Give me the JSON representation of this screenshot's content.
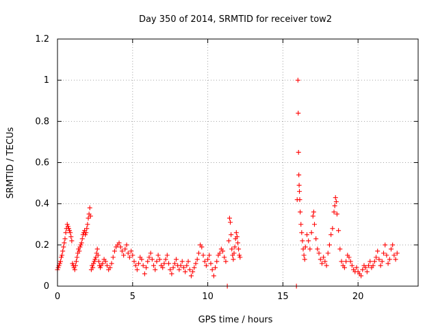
{
  "chart_data": {
    "type": "scatter",
    "title": "Day 350 of 2014, SRMTID for receiver tow2",
    "xlabel": "GPS time / hours",
    "ylabel": "SRMTID / TECUs",
    "xlim": [
      0,
      24
    ],
    "ylim": [
      0,
      1.2
    ],
    "x_ticks": [
      0,
      5,
      10,
      15,
      20
    ],
    "x_tick_labels": [
      "0",
      "5",
      "10",
      "15",
      "20"
    ],
    "y_ticks": [
      0,
      0.2,
      0.4,
      0.6,
      0.8,
      1.0,
      1.2
    ],
    "y_tick_labels": [
      "0",
      "0.2",
      "0.4",
      "0.6",
      "0.8",
      "1",
      "1.2"
    ],
    "grid": true,
    "marker": "plus",
    "color": "#ff0000",
    "series": [
      {
        "name": "SRMTID",
        "points": [
          [
            0.0,
            0.08
          ],
          [
            0.05,
            0.09
          ],
          [
            0.1,
            0.1
          ],
          [
            0.15,
            0.11
          ],
          [
            0.2,
            0.12
          ],
          [
            0.25,
            0.14
          ],
          [
            0.3,
            0.15
          ],
          [
            0.35,
            0.17
          ],
          [
            0.4,
            0.19
          ],
          [
            0.45,
            0.21
          ],
          [
            0.5,
            0.23
          ],
          [
            0.55,
            0.26
          ],
          [
            0.6,
            0.28
          ],
          [
            0.65,
            0.3
          ],
          [
            0.7,
            0.29
          ],
          [
            0.75,
            0.28
          ],
          [
            0.8,
            0.27
          ],
          [
            0.85,
            0.26
          ],
          [
            0.9,
            0.24
          ],
          [
            0.95,
            0.22
          ],
          [
            1.0,
            0.11
          ],
          [
            1.05,
            0.1
          ],
          [
            1.1,
            0.09
          ],
          [
            1.15,
            0.08
          ],
          [
            1.2,
            0.1
          ],
          [
            1.25,
            0.12
          ],
          [
            1.3,
            0.14
          ],
          [
            1.35,
            0.16
          ],
          [
            1.4,
            0.18
          ],
          [
            1.45,
            0.17
          ],
          [
            1.5,
            0.19
          ],
          [
            1.55,
            0.2
          ],
          [
            1.6,
            0.21
          ],
          [
            1.65,
            0.23
          ],
          [
            1.7,
            0.25
          ],
          [
            1.75,
            0.26
          ],
          [
            1.8,
            0.27
          ],
          [
            1.85,
            0.25
          ],
          [
            1.9,
            0.26
          ],
          [
            1.95,
            0.28
          ],
          [
            2.0,
            0.3
          ],
          [
            2.05,
            0.33
          ],
          [
            2.1,
            0.35
          ],
          [
            2.15,
            0.38
          ],
          [
            2.2,
            0.34
          ],
          [
            2.25,
            0.08
          ],
          [
            2.3,
            0.1
          ],
          [
            2.35,
            0.09
          ],
          [
            2.4,
            0.11
          ],
          [
            2.45,
            0.12
          ],
          [
            2.5,
            0.13
          ],
          [
            2.55,
            0.14
          ],
          [
            2.6,
            0.16
          ],
          [
            2.65,
            0.18
          ],
          [
            2.7,
            0.15
          ],
          [
            2.75,
            0.12
          ],
          [
            2.8,
            0.1
          ],
          [
            2.85,
            0.09
          ],
          [
            2.9,
            0.1
          ],
          [
            3.0,
            0.11
          ],
          [
            3.1,
            0.13
          ],
          [
            3.2,
            0.12
          ],
          [
            3.3,
            0.1
          ],
          [
            3.4,
            0.08
          ],
          [
            3.5,
            0.09
          ],
          [
            3.6,
            0.11
          ],
          [
            3.7,
            0.14
          ],
          [
            3.8,
            0.17
          ],
          [
            3.9,
            0.19
          ],
          [
            4.0,
            0.2
          ],
          [
            4.1,
            0.21
          ],
          [
            4.2,
            0.19
          ],
          [
            4.3,
            0.17
          ],
          [
            4.4,
            0.15
          ],
          [
            4.5,
            0.18
          ],
          [
            4.6,
            0.2
          ],
          [
            4.7,
            0.16
          ],
          [
            4.8,
            0.14
          ],
          [
            4.9,
            0.17
          ],
          [
            5.0,
            0.15
          ],
          [
            5.1,
            0.12
          ],
          [
            5.2,
            0.1
          ],
          [
            5.3,
            0.08
          ],
          [
            5.4,
            0.11
          ],
          [
            5.5,
            0.14
          ],
          [
            5.6,
            0.13
          ],
          [
            5.7,
            0.1
          ],
          [
            5.8,
            0.06
          ],
          [
            5.9,
            0.09
          ],
          [
            6.0,
            0.12
          ],
          [
            6.1,
            0.14
          ],
          [
            6.2,
            0.16
          ],
          [
            6.3,
            0.13
          ],
          [
            6.4,
            0.1
          ],
          [
            6.5,
            0.08
          ],
          [
            6.6,
            0.12
          ],
          [
            6.7,
            0.15
          ],
          [
            6.8,
            0.13
          ],
          [
            6.9,
            0.1
          ],
          [
            7.0,
            0.09
          ],
          [
            7.1,
            0.11
          ],
          [
            7.2,
            0.13
          ],
          [
            7.3,
            0.15
          ],
          [
            7.4,
            0.11
          ],
          [
            7.5,
            0.08
          ],
          [
            7.6,
            0.06
          ],
          [
            7.7,
            0.09
          ],
          [
            7.8,
            0.11
          ],
          [
            7.9,
            0.13
          ],
          [
            8.0,
            0.1
          ],
          [
            8.1,
            0.08
          ],
          [
            8.2,
            0.1
          ],
          [
            8.3,
            0.12
          ],
          [
            8.4,
            0.09
          ],
          [
            8.5,
            0.07
          ],
          [
            8.6,
            0.1
          ],
          [
            8.7,
            0.12
          ],
          [
            8.8,
            0.08
          ],
          [
            8.9,
            0.05
          ],
          [
            9.0,
            0.07
          ],
          [
            9.1,
            0.09
          ],
          [
            9.2,
            0.11
          ],
          [
            9.3,
            0.13
          ],
          [
            9.4,
            0.16
          ],
          [
            9.5,
            0.2
          ],
          [
            9.6,
            0.19
          ],
          [
            9.7,
            0.15
          ],
          [
            9.8,
            0.12
          ],
          [
            9.9,
            0.1
          ],
          [
            10.0,
            0.13
          ],
          [
            10.1,
            0.15
          ],
          [
            10.2,
            0.11
          ],
          [
            10.3,
            0.08
          ],
          [
            10.4,
            0.05
          ],
          [
            10.5,
            0.09
          ],
          [
            10.6,
            0.12
          ],
          [
            10.7,
            0.15
          ],
          [
            10.8,
            0.16
          ],
          [
            10.9,
            0.18
          ],
          [
            11.0,
            0.17
          ],
          [
            11.1,
            0.14
          ],
          [
            11.2,
            0.12
          ],
          [
            11.3,
            0.0
          ],
          [
            11.4,
            0.22
          ],
          [
            11.45,
            0.33
          ],
          [
            11.5,
            0.31
          ],
          [
            11.55,
            0.25
          ],
          [
            11.6,
            0.18
          ],
          [
            11.65,
            0.15
          ],
          [
            11.7,
            0.13
          ],
          [
            11.75,
            0.16
          ],
          [
            11.8,
            0.19
          ],
          [
            11.85,
            0.23
          ],
          [
            11.9,
            0.26
          ],
          [
            11.95,
            0.24
          ],
          [
            12.0,
            0.21
          ],
          [
            12.05,
            0.18
          ],
          [
            12.1,
            0.15
          ],
          [
            12.15,
            0.14
          ],
          [
            15.9,
            0.0
          ],
          [
            15.95,
            0.42
          ],
          [
            16.0,
            1.0
          ],
          [
            16.02,
            0.84
          ],
          [
            16.04,
            0.65
          ],
          [
            16.06,
            0.54
          ],
          [
            16.08,
            0.49
          ],
          [
            16.1,
            0.46
          ],
          [
            16.12,
            0.42
          ],
          [
            16.15,
            0.36
          ],
          [
            16.2,
            0.3
          ],
          [
            16.25,
            0.26
          ],
          [
            16.3,
            0.22
          ],
          [
            16.35,
            0.18
          ],
          [
            16.4,
            0.15
          ],
          [
            16.45,
            0.13
          ],
          [
            16.5,
            0.19
          ],
          [
            16.6,
            0.25
          ],
          [
            16.7,
            0.22
          ],
          [
            16.8,
            0.18
          ],
          [
            16.9,
            0.26
          ],
          [
            17.0,
            0.34
          ],
          [
            17.05,
            0.36
          ],
          [
            17.1,
            0.3
          ],
          [
            17.2,
            0.23
          ],
          [
            17.3,
            0.18
          ],
          [
            17.4,
            0.16
          ],
          [
            17.5,
            0.13
          ],
          [
            17.6,
            0.11
          ],
          [
            17.7,
            0.14
          ],
          [
            17.8,
            0.12
          ],
          [
            17.9,
            0.1
          ],
          [
            18.0,
            0.16
          ],
          [
            18.1,
            0.2
          ],
          [
            18.2,
            0.25
          ],
          [
            18.3,
            0.28
          ],
          [
            18.4,
            0.36
          ],
          [
            18.45,
            0.39
          ],
          [
            18.5,
            0.43
          ],
          [
            18.55,
            0.41
          ],
          [
            18.6,
            0.35
          ],
          [
            18.7,
            0.27
          ],
          [
            18.8,
            0.18
          ],
          [
            18.9,
            0.12
          ],
          [
            19.0,
            0.1
          ],
          [
            19.1,
            0.09
          ],
          [
            19.2,
            0.12
          ],
          [
            19.3,
            0.15
          ],
          [
            19.4,
            0.14
          ],
          [
            19.5,
            0.12
          ],
          [
            19.6,
            0.1
          ],
          [
            19.7,
            0.08
          ],
          [
            19.8,
            0.07
          ],
          [
            19.9,
            0.09
          ],
          [
            20.0,
            0.07
          ],
          [
            20.1,
            0.06
          ],
          [
            20.2,
            0.05
          ],
          [
            20.3,
            0.08
          ],
          [
            20.4,
            0.1
          ],
          [
            20.5,
            0.09
          ],
          [
            20.6,
            0.07
          ],
          [
            20.7,
            0.1
          ],
          [
            20.8,
            0.12
          ],
          [
            20.9,
            0.09
          ],
          [
            21.0,
            0.1
          ],
          [
            21.1,
            0.12
          ],
          [
            21.2,
            0.14
          ],
          [
            21.3,
            0.17
          ],
          [
            21.4,
            0.13
          ],
          [
            21.5,
            0.1
          ],
          [
            21.6,
            0.12
          ],
          [
            21.7,
            0.16
          ],
          [
            21.8,
            0.2
          ],
          [
            21.9,
            0.15
          ],
          [
            22.0,
            0.11
          ],
          [
            22.1,
            0.13
          ],
          [
            22.2,
            0.18
          ],
          [
            22.3,
            0.2
          ],
          [
            22.4,
            0.15
          ],
          [
            22.5,
            0.13
          ],
          [
            22.6,
            0.16
          ]
        ]
      }
    ]
  }
}
